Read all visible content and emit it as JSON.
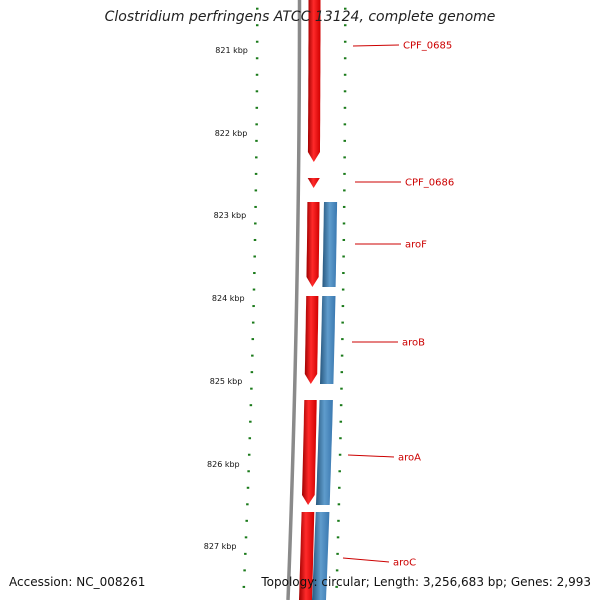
{
  "title": "Clostridium perfringens ATCC 13124, complete genome",
  "accession": "Accession: NC_008261",
  "topology": "Topology: circular; Length: 3,256,683 bp; Genes: 2,993",
  "colors": {
    "backbone": "#888888",
    "ticks": "#1a7a1a",
    "cds": "#ee0000",
    "gene": "#3a78b0",
    "label": "#cc0000"
  },
  "kbp_labels": [
    "821 kbp",
    "822 kbp",
    "823 kbp",
    "824 kbp",
    "825 kbp",
    "826 kbp",
    "827 kbp"
  ],
  "genes": [
    {
      "name": "CPF_0685"
    },
    {
      "name": "CPF_0686"
    },
    {
      "name": "aroF"
    },
    {
      "name": "aroB"
    },
    {
      "name": "aroA"
    },
    {
      "name": "aroC"
    }
  ]
}
